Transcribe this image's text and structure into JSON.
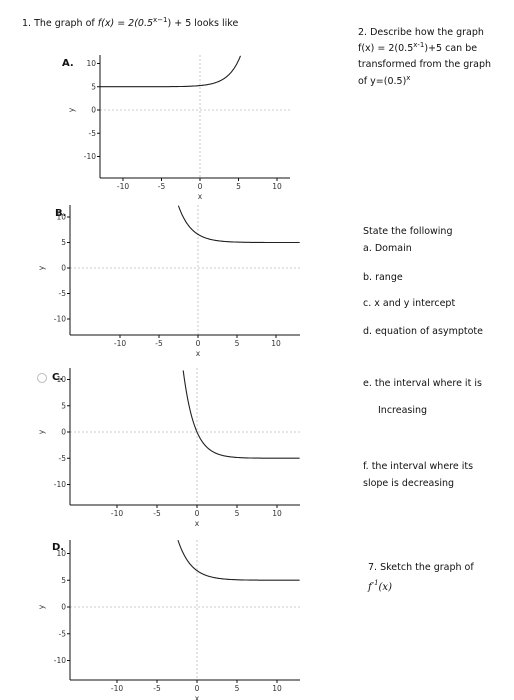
{
  "question1": {
    "lead": "1. The graph of",
    "base": "f(x) = 2(0.5",
    "exponent": "x−1",
    "rest": ") + 5",
    "tail": "looks like"
  },
  "options": [
    {
      "letter": "A."
    },
    {
      "letter": "B."
    },
    {
      "letter": "C."
    },
    {
      "letter": "D."
    }
  ],
  "axis": {
    "x_label": "x",
    "y_label": "y",
    "xticks": [
      -10,
      -5,
      0,
      5,
      10
    ],
    "yticks": [
      10,
      5,
      0,
      -5,
      -10
    ]
  },
  "question2": {
    "line1": "2. Describe how the graph",
    "line2_base": "f(x) = 2(0.5",
    "line2_exponent": "x-1",
    "line2_rest": ")+5 can be",
    "line3": "transformed from the graph",
    "line4_base": "of y=(0.5)",
    "line4_exponent": "x"
  },
  "state": {
    "heading": "State the following",
    "items": [
      "a. Domain",
      "b. range",
      "c. x and y intercept",
      "d. equation of asymptote",
      "e. the interval where it is",
      "Increasing",
      "f. the interval where its",
      "slope is decreasing"
    ]
  },
  "question7": {
    "line1": "7. Sketch the graph of",
    "base": "f",
    "exponent": "-1",
    "rest": "(x)"
  }
}
